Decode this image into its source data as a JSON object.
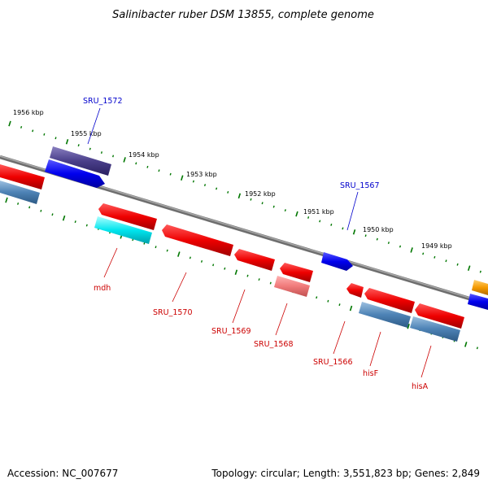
{
  "title": "Salinibacter ruber DSM 13855, complete genome",
  "ruler_labels": [
    "1956 kbp",
    "1955 kbp",
    "1954 kbp",
    "1953 kbp",
    "1952 kbp",
    "1951 kbp",
    "1950 kbp",
    "1949 kbp"
  ],
  "gene_labels": {
    "sru1572": "SRU_1572",
    "sru1567": "SRU_1567",
    "mdh": "mdh",
    "sru1570": "SRU_1570",
    "sru1569": "SRU_1569",
    "sru1568": "SRU_1568",
    "sru1566": "SRU_1566",
    "hisF": "hisF",
    "hisA": "hisA"
  },
  "colors": {
    "red": "#e00000",
    "blue": "#0000ee",
    "darkpurple": "#4a3f8a",
    "steelblue": "#4d82b5",
    "cyan": "#00e5ee",
    "pink": "#f07a7a",
    "orange": "#f59a00",
    "tick_green": "#007700",
    "backbone": "#888888"
  },
  "footer": {
    "accession": "Accession: NC_007677",
    "summary": "Topology: circular; Length: 3,551,823 bp; Genes: 2,849"
  }
}
